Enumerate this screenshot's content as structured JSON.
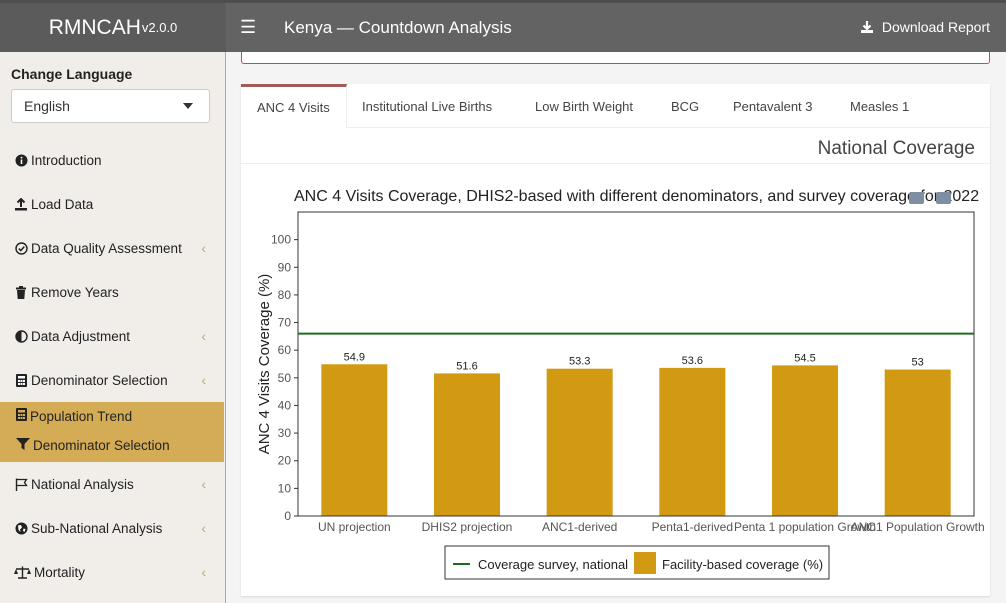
{
  "header": {
    "brand": "RMNCAH",
    "version": "v2.0.0",
    "title": "Kenya — Countdown Analysis",
    "download_label": "Download Report"
  },
  "sidebar": {
    "language_label": "Change Language",
    "language_value": "English",
    "items": [
      {
        "label": "Introduction",
        "icon": "info-icon"
      },
      {
        "label": "Load Data",
        "icon": "upload-icon"
      },
      {
        "label": "Data Quality Assessment",
        "icon": "check-circle-icon"
      },
      {
        "label": "Remove Years",
        "icon": "trash-icon"
      },
      {
        "label": "Data Adjustment",
        "icon": "adjust-icon"
      },
      {
        "label": "Denominator Selection",
        "icon": "calculator-icon"
      },
      {
        "label": "National Analysis",
        "icon": "flag-icon"
      },
      {
        "label": "Sub-National Analysis",
        "icon": "globe-icon"
      },
      {
        "label": "Mortality",
        "icon": "balance-icon"
      }
    ],
    "sub_items": [
      {
        "label": "Population Trend",
        "icon": "calculator-icon"
      },
      {
        "label": "Denominator Selection",
        "icon": "filter-icon"
      }
    ]
  },
  "tabs": [
    "ANC 4 Visits",
    "Institutional Live Births",
    "Low Birth Weight",
    "BCG",
    "Pentavalent 3",
    "Measles 1"
  ],
  "section_title": "National Coverage",
  "chart_data": {
    "type": "bar",
    "title": "ANC 4 Visits Coverage, DHIS2-based with different denominators, and survey coverage for 2022",
    "ylabel": "ANC 4 Visits Coverage (%)",
    "xlabel": "",
    "ylim": [
      0,
      110
    ],
    "yticks": [
      0,
      10,
      20,
      30,
      40,
      50,
      60,
      70,
      80,
      90,
      100
    ],
    "categories": [
      "UN projection",
      "DHIS2 projection",
      "ANC1-derived",
      "Penta1-derived",
      "Penta 1 population Growth",
      "ANC1 Population Growth"
    ],
    "values": [
      54.9,
      51.6,
      53.3,
      53.6,
      54.5,
      53
    ],
    "value_labels": [
      "54.9",
      "51.6",
      "53.3",
      "53.6",
      "54.5",
      "53"
    ],
    "survey_line": 66,
    "legend": [
      "Coverage survey, national",
      "Facility-based coverage (%)"
    ],
    "legend_position": "bottom",
    "colors": {
      "bar": "#d29a12",
      "line": "#1e6b1e"
    }
  }
}
